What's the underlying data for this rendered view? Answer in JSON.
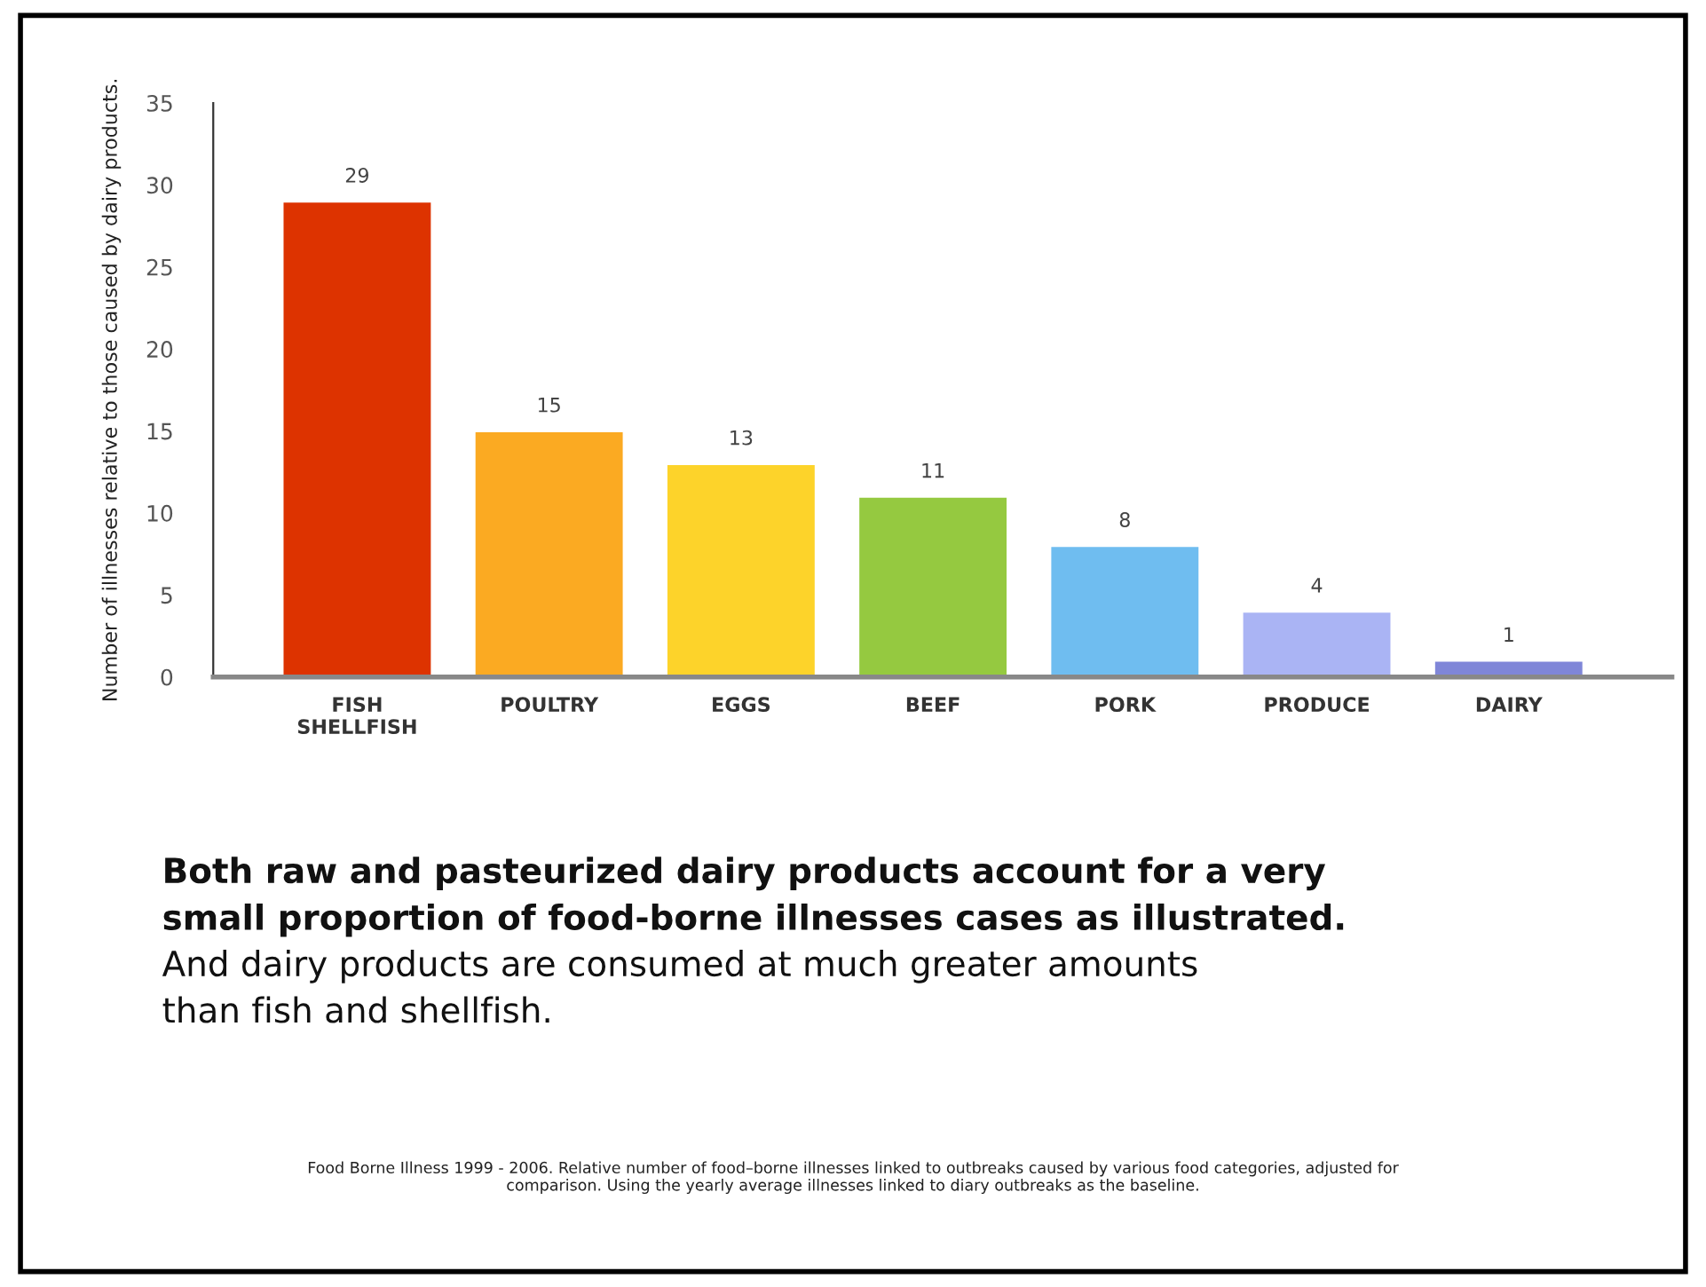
{
  "chart_data": {
    "type": "bar",
    "ylabel": "Number of illnesses relative to those caused by dairy products.",
    "categories": [
      "FISH\nSHELLFISH",
      "POULTRY",
      "EGGS",
      "BEEF",
      "PORK",
      "PRODUCE",
      "DAIRY"
    ],
    "values": [
      29,
      15,
      13,
      11,
      8,
      4,
      1
    ],
    "colors": [
      "#dd3300",
      "#fbaa22",
      "#fdd32a",
      "#95c940",
      "#6fbdf0",
      "#aab4f4",
      "#7f86d8"
    ],
    "ylim": [
      0,
      35
    ],
    "yticks": [
      0,
      5,
      10,
      15,
      20,
      25,
      30,
      35
    ],
    "data_labels": true,
    "grid": false,
    "annotations": [
      "Both raw and pasteurized dairy products account for a very\nsmall proportion of food-borne illnesses cases as illustrated.",
      "And dairy products are consumed at much greater amounts\nthan fish and shellfish.",
      "Food Borne Illness 1999 - 2006. Relative number of food–borne illnesses linked to outbreaks caused by various food categories, adjusted for\ncomparison. Using the yearly average illnesses linked to diary outbreaks as the baseline."
    ]
  }
}
